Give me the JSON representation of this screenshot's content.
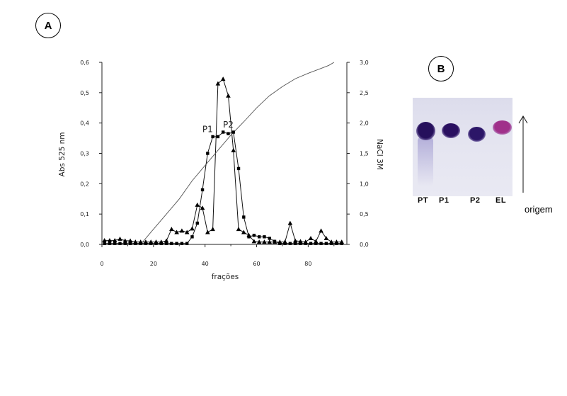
{
  "panels": {
    "a_label": "A",
    "b_label": "B"
  },
  "chart_data": {
    "type": "line",
    "xlabel": "frações",
    "ylabel": "Abs 525 nm",
    "y2label": "NaCl 3M",
    "xlim": [
      0,
      95
    ],
    "ylim": [
      0,
      0.6
    ],
    "y2lim": [
      0,
      3.0
    ],
    "xticks": [
      "0",
      "20",
      "40",
      "60",
      "80"
    ],
    "yticks": [
      "0,0",
      "0,1",
      "0,2",
      "0,3",
      "0,4",
      "0,5",
      "0,6"
    ],
    "y2ticks": [
      "0,0",
      "0,5",
      "1,0",
      "1,5",
      "2,0",
      "2,5",
      "3,0"
    ],
    "annotations": [
      {
        "text": "P1",
        "x": 41,
        "y": 0.37
      },
      {
        "text": "P2",
        "x": 49,
        "y": 0.385
      }
    ],
    "series": [
      {
        "marker": "triangle",
        "axis": "left",
        "x": [
          1,
          3,
          5,
          7,
          9,
          11,
          13,
          15,
          17,
          19,
          21,
          23,
          25,
          27,
          29,
          31,
          33,
          35,
          37,
          39,
          41,
          43,
          45,
          47,
          49,
          51,
          53,
          55,
          57,
          59,
          61,
          63,
          65,
          67,
          69,
          71,
          73,
          75,
          77,
          79,
          81,
          83,
          85,
          87,
          89,
          91,
          93
        ],
        "y": [
          0.013,
          0.013,
          0.013,
          0.018,
          0.012,
          0.012,
          0.008,
          0.008,
          0.008,
          0.008,
          0.008,
          0.008,
          0.012,
          0.05,
          0.04,
          0.045,
          0.04,
          0.052,
          0.13,
          0.12,
          0.04,
          0.05,
          0.53,
          0.545,
          0.49,
          0.31,
          0.05,
          0.04,
          0.03,
          0.01,
          0.008,
          0.008,
          0.008,
          0.008,
          0.008,
          0.008,
          0.07,
          0.012,
          0.01,
          0.008,
          0.02,
          0.01,
          0.045,
          0.02,
          0.008,
          0.008,
          0.008
        ]
      },
      {
        "marker": "square",
        "axis": "left",
        "x": [
          1,
          3,
          5,
          7,
          9,
          11,
          13,
          15,
          17,
          19,
          21,
          23,
          25,
          27,
          29,
          31,
          33,
          35,
          37,
          39,
          41,
          43,
          45,
          47,
          49,
          51,
          53,
          55,
          57,
          59,
          61,
          63,
          65,
          67,
          69,
          71,
          73,
          75,
          77,
          79,
          81,
          83,
          85,
          87,
          89,
          91,
          93
        ],
        "y": [
          0.003,
          0.003,
          0.003,
          0.003,
          0.003,
          0.003,
          0.003,
          0.003,
          0.003,
          0.003,
          0.003,
          0.003,
          0.003,
          0.003,
          0.003,
          0.003,
          0.003,
          0.025,
          0.07,
          0.18,
          0.3,
          0.355,
          0.355,
          0.37,
          0.365,
          0.37,
          0.25,
          0.09,
          0.025,
          0.03,
          0.025,
          0.025,
          0.02,
          0.01,
          0.003,
          0.003,
          0.003,
          0.003,
          0.003,
          0.003,
          0.003,
          0.003,
          0.003,
          0.003,
          0.003,
          0.003,
          0.003
        ]
      },
      {
        "marker": "none",
        "axis": "right",
        "x": [
          15,
          20,
          25,
          30,
          35,
          40,
          45,
          50,
          55,
          60,
          65,
          70,
          75,
          80,
          85,
          88,
          90
        ],
        "y": [
          0.0,
          0.25,
          0.5,
          0.75,
          1.05,
          1.3,
          1.55,
          1.8,
          2.02,
          2.25,
          2.45,
          2.6,
          2.73,
          2.82,
          2.9,
          2.95,
          3.0
        ]
      }
    ]
  },
  "gel": {
    "lanes": [
      "PT",
      "P1",
      "P2",
      "EL"
    ],
    "origin_label": "origem",
    "spot_colors": [
      "#26105c",
      "#2a1060",
      "#2c1668",
      "#a0308a"
    ]
  }
}
